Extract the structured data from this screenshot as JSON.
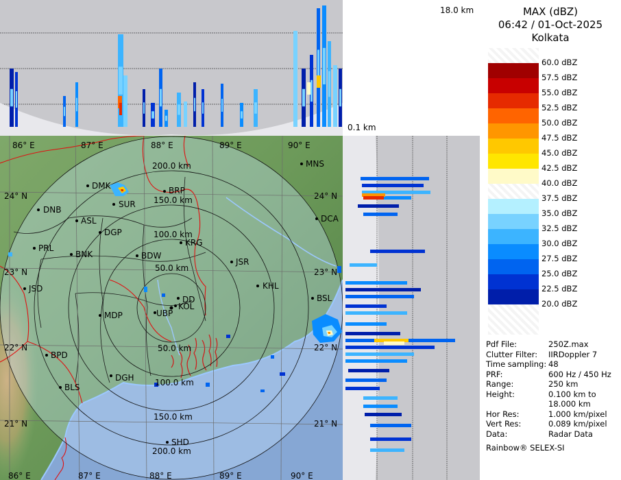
{
  "header": {
    "product": "MAX (dBZ)",
    "datetime": "06:42 / 01-Oct-2025",
    "station": "Kolkata"
  },
  "height_labels": {
    "top": "18.0 km",
    "bottom": "0.1 km"
  },
  "color_scale": [
    {
      "label": "60.0 dBZ",
      "color": "#ffffff"
    },
    {
      "label": "57.5 dBZ",
      "color": "#a00000"
    },
    {
      "label": "55.0 dBZ",
      "color": "#c80000"
    },
    {
      "label": "52.5 dBZ",
      "color": "#e62a00"
    },
    {
      "label": "50.0 dBZ",
      "color": "#ff6400"
    },
    {
      "label": "47.5 dBZ",
      "color": "#ff9600"
    },
    {
      "label": "45.0 dBZ",
      "color": "#ffc800"
    },
    {
      "label": "42.5 dBZ",
      "color": "#ffe600"
    },
    {
      "label": "40.0 dBZ",
      "color": "#fffac8"
    },
    {
      "label": "37.5 dBZ",
      "color": "#ffffff"
    },
    {
      "label": "35.0 dBZ",
      "color": "#b4f0ff"
    },
    {
      "label": "32.5 dBZ",
      "color": "#78d2ff"
    },
    {
      "label": "30.0 dBZ",
      "color": "#3cb4ff"
    },
    {
      "label": "27.5 dBZ",
      "color": "#0a8cff"
    },
    {
      "label": "25.0 dBZ",
      "color": "#0064f0"
    },
    {
      "label": "22.5 dBZ",
      "color": "#0032d2"
    },
    {
      "label": "20.0 dBZ",
      "color": "#001eaa"
    }
  ],
  "info": [
    {
      "key": "Pdf File:",
      "value": "250Z.max"
    },
    {
      "key": "Clutter Filter:",
      "value": "IIRDoppler 7"
    },
    {
      "key": "Time sampling:",
      "value": "48"
    },
    {
      "key": "PRF:",
      "value": "600 Hz / 450 Hz"
    },
    {
      "key": "Range:",
      "value": "250 km"
    },
    {
      "key": "Height:",
      "value": "0.100 km to"
    },
    {
      "key": "",
      "value": "18.000 km"
    },
    {
      "key": "Hor Res:",
      "value": "1.000 km/pixel"
    },
    {
      "key": "Vert Res:",
      "value": "0.089 km/pixel"
    },
    {
      "key": "Data:",
      "value": "Radar Data"
    }
  ],
  "footer": "Rainbow® SELEX-SI",
  "map": {
    "longitude_labels": [
      "86° E",
      "87° E",
      "88° E",
      "89° E",
      "90° E"
    ],
    "latitude_labels": [
      "24° N",
      "23° N",
      "22° N",
      "21° N"
    ],
    "range_rings": [
      "50.0 km",
      "100.0 km",
      "150.0 km",
      "200.0 km"
    ],
    "stations": [
      {
        "name": "MNS"
      },
      {
        "name": "DMK"
      },
      {
        "name": "BRP"
      },
      {
        "name": "SUR"
      },
      {
        "name": "DNB"
      },
      {
        "name": "ASL"
      },
      {
        "name": "DGP"
      },
      {
        "name": "DCA"
      },
      {
        "name": "KRG"
      },
      {
        "name": "PRL"
      },
      {
        "name": "BNK"
      },
      {
        "name": "BDW"
      },
      {
        "name": "JSR"
      },
      {
        "name": "KHL"
      },
      {
        "name": "JSD"
      },
      {
        "name": "DD"
      },
      {
        "name": "KOL"
      },
      {
        "name": "BSL"
      },
      {
        "name": "MDP"
      },
      {
        "name": "UBP"
      },
      {
        "name": "BPD"
      },
      {
        "name": "DGH"
      },
      {
        "name": "BLS"
      },
      {
        "name": "SHD"
      }
    ]
  }
}
